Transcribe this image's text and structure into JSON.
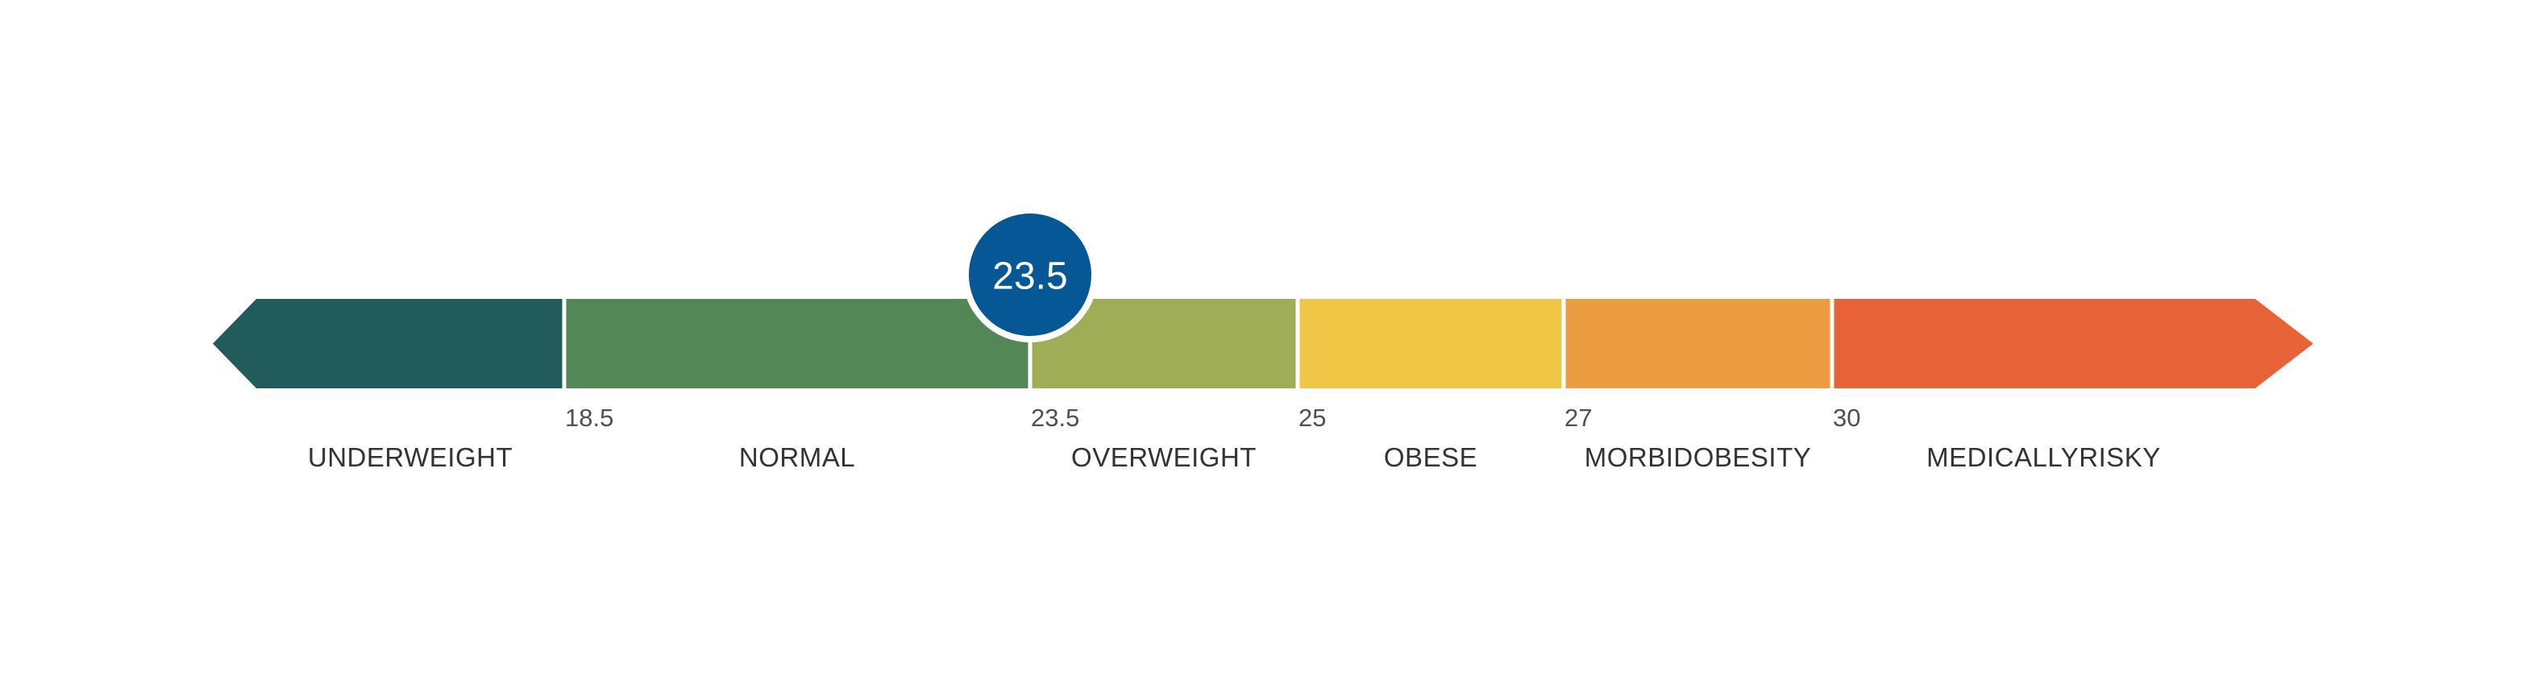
{
  "scale": {
    "min": 0,
    "max": 40,
    "boundaries": [
      {
        "value": 18.5,
        "label": "18.5"
      },
      {
        "value": 23.5,
        "label": "23.5"
      },
      {
        "value": 25,
        "label": "25"
      },
      {
        "value": 27,
        "label": "27"
      },
      {
        "value": 30,
        "label": "30"
      }
    ],
    "segments": [
      {
        "label": "UNDERWEIGHT",
        "color": "#225B5B"
      },
      {
        "label": "NORMAL",
        "color": "#548756"
      },
      {
        "label": "OVERWEIGHT",
        "color": "#A0AD57"
      },
      {
        "label": "OBESE",
        "color": "#F0C647"
      },
      {
        "label": "MORBIDOBESITY",
        "color": "#EC9C41"
      },
      {
        "label": "MEDICALLYRISKY",
        "color": "#E86238"
      }
    ]
  },
  "marker": {
    "value": 23.5,
    "label": "23.5",
    "color": "#055895"
  }
}
